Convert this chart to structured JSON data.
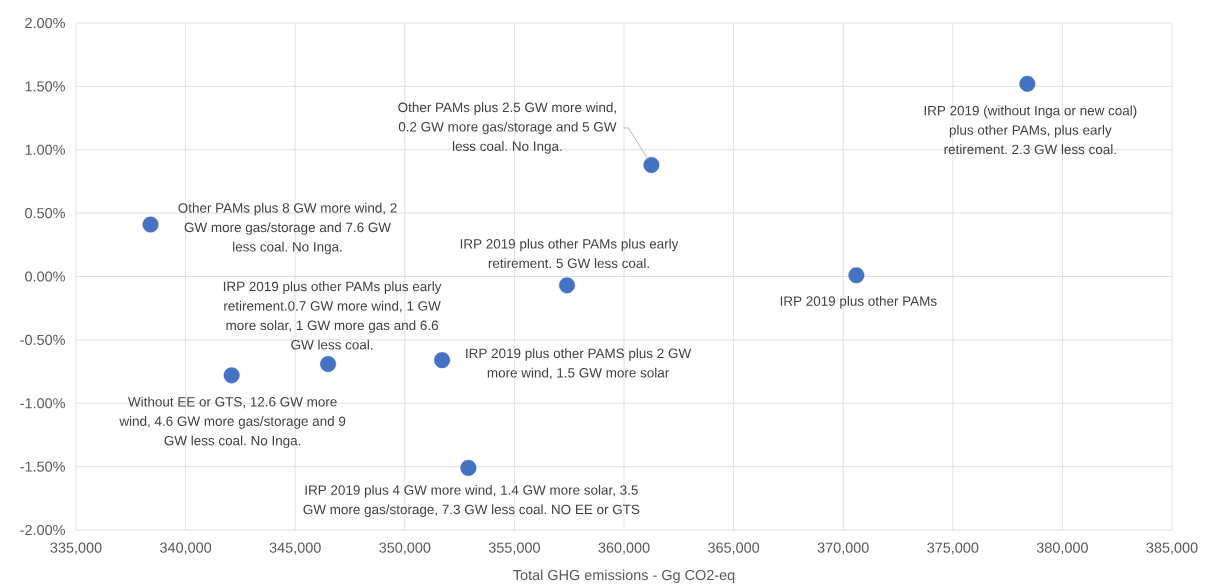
{
  "chart_data": {
    "type": "scatter",
    "xlabel": "Total GHG emissions - Gg CO2-eq",
    "x": [
      338400,
      361250,
      378400,
      370600,
      357400,
      342100,
      346500,
      351700,
      352900
    ],
    "values": [
      0.41,
      0.88,
      1.52,
      0.01,
      -0.07,
      -0.78,
      -0.69,
      -0.66,
      -1.51
    ],
    "color": "#4472c4",
    "marker": "circle",
    "grid": true,
    "xlim": [
      335000,
      385000
    ],
    "ylim": [
      -2,
      2
    ],
    "xticks": [
      {
        "value": 335000,
        "label": "335,000"
      },
      {
        "value": 340000,
        "label": "340,000"
      },
      {
        "value": 345000,
        "label": "345,000"
      },
      {
        "value": 350000,
        "label": "350,000"
      },
      {
        "value": 355000,
        "label": "355,000"
      },
      {
        "value": 360000,
        "label": "360,000"
      },
      {
        "value": 365000,
        "label": "365,000"
      },
      {
        "value": 370000,
        "label": "370,000"
      },
      {
        "value": 375000,
        "label": "375,000"
      },
      {
        "value": 380000,
        "label": "380,000"
      },
      {
        "value": 385000,
        "label": "385,000"
      }
    ],
    "yticks": [
      {
        "value": -2,
        "label": "-2.00%"
      },
      {
        "value": -1.5,
        "label": "-1.50%"
      },
      {
        "value": -1,
        "label": "-1.00%"
      },
      {
        "value": -0.5,
        "label": "-0.50%"
      },
      {
        "value": 0,
        "label": "0.00%"
      },
      {
        "value": 0.5,
        "label": "0.50%"
      },
      {
        "value": 1,
        "label": "1.00%"
      },
      {
        "value": 1.5,
        "label": "1.50%"
      },
      {
        "value": 2,
        "label": "2.00%"
      }
    ],
    "annotations": [
      {
        "text": "Other PAMs plus 8 GW more wind, 2 GW more gas/storage and 7.6 GW less coal. No Inga.",
        "x": 338400,
        "y": 0.41
      },
      {
        "text": "Other PAMs plus 2.5 GW more wind, 0.2 GW more gas/storage and 5 GW less coal. No Inga.",
        "x": 361250,
        "y": 0.88
      },
      {
        "text": "IRP 2019 (without Inga or new coal) plus other PAMs, plus early retirement. 2.3 GW less coal.",
        "x": 378400,
        "y": 1.52
      },
      {
        "text": "IRP 2019 plus other PAMs",
        "x": 370600,
        "y": 0.01
      },
      {
        "text": "IRP 2019 plus other PAMs plus early retirement. 5 GW less coal.",
        "x": 357400,
        "y": -0.07
      },
      {
        "text": "Without EE or GTS, 12.6 GW more wind, 4.6 GW more gas/storage and 9 GW less coal. No Inga.",
        "x": 342100,
        "y": -0.78
      },
      {
        "text": "IRP 2019 plus other PAMs plus early retirement.0.7 GW more wind, 1 GW more solar, 1 GW more gas and 6.6 GW less coal.",
        "x": 346500,
        "y": -0.69
      },
      {
        "text": "IRP 2019 plus other PAMS plus 2 GW more wind, 1.5 GW more solar",
        "x": 351700,
        "y": -0.66
      },
      {
        "text": "IRP 2019 plus 4 GW more wind, 1.4 GW more solar, 3.5 GW more gas/storage, 7.3 GW less coal. NO EE or GTS",
        "x": 352900,
        "y": -1.51
      }
    ]
  }
}
